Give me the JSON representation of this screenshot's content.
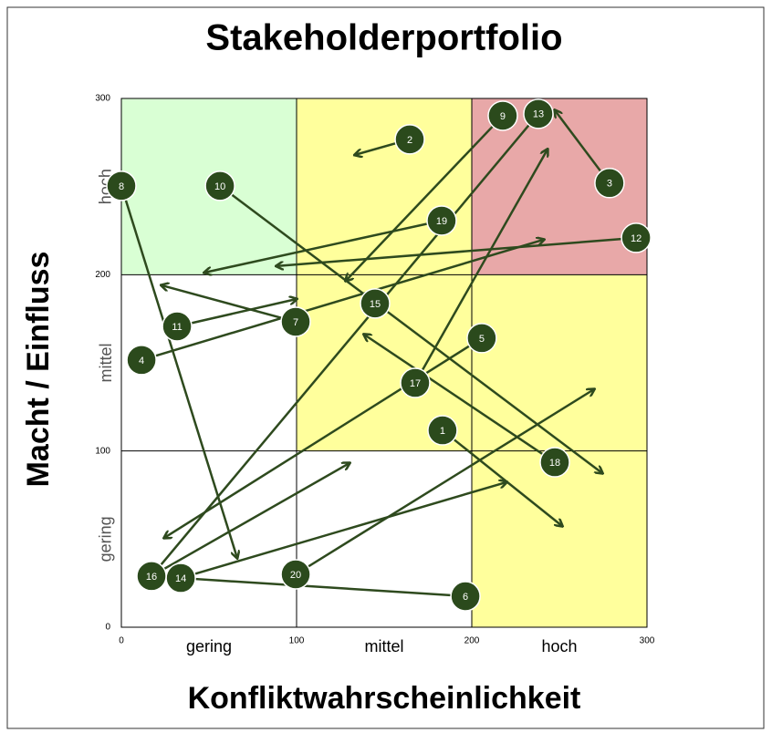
{
  "chart_data": {
    "type": "scatter",
    "title": "Stakeholderportfolio",
    "x_label": "Konfliktwahrscheinlichkeit",
    "y_label": "Macht / Einfluss",
    "x_categories": [
      "gering",
      "mittel",
      "hoch"
    ],
    "y_categories": [
      "gering",
      "mittel",
      "hoch"
    ],
    "xlim": [
      0,
      300
    ],
    "ylim": [
      0,
      300
    ],
    "xticks": [
      0,
      100,
      200,
      300
    ],
    "yticks": [
      0,
      100,
      200,
      300
    ],
    "grid": true,
    "zone_colors": [
      [
        "#d9ffd4",
        "#ffff9c",
        "#e8a8a8"
      ],
      [
        "#ffffff",
        "#ffff9c",
        "#ffff9c"
      ],
      [
        "#ffffff",
        "#ffffff",
        "#ffff9c"
      ]
    ],
    "color": "#2b4a1c",
    "points": {
      "labels": [
        "1",
        "2",
        "3",
        "4",
        "5",
        "6",
        "7",
        "8",
        "9",
        "10",
        "11",
        "12",
        "13",
        "14",
        "15",
        "16",
        "17",
        "18",
        "19",
        "20"
      ],
      "x": [
        183.3,
        164.6,
        278.6,
        11.5,
        205.7,
        196.4,
        99.5,
        0,
        217.7,
        56.3,
        31.8,
        293.8,
        238,
        33.9,
        144.8,
        17.2,
        167.7,
        247.4,
        182.8,
        99.5
      ],
      "y": [
        111.7,
        276.8,
        252,
        151.6,
        164,
        17.6,
        173.3,
        250.4,
        290.2,
        250.4,
        170.7,
        220.9,
        291.3,
        27.9,
        183.7,
        29,
        138.6,
        93.6,
        230.7,
        30
      ],
      "target_x": [
        251.6,
        133.3,
        247.4,
        241.1,
        24.5,
        33.9,
        22.9,
        66.1,
        128.1,
        274.5,
        100,
        88.5,
        17.2,
        219.8,
        null,
        130.2,
        243.2,
        138.5,
        47.4,
        269.8
      ],
      "target_y": [
        57.4,
        268,
        293.3,
        219.9,
        50.7,
        27.9,
        194,
        39.3,
        196.6,
        87.4,
        186.2,
        204.9,
        29,
        82.3,
        null,
        93.1,
        271.1,
        166.1,
        201.2,
        135
      ]
    }
  }
}
